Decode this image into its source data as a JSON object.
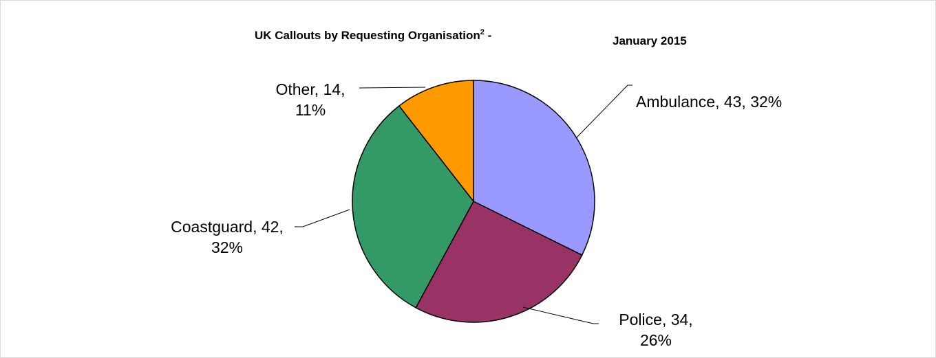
{
  "chart_data": {
    "type": "pie",
    "title": "UK Callouts by Requesting Organisation",
    "title_superscript": "2",
    "title_separator": " -",
    "subtitle": "January 2015",
    "categories": [
      "Ambulance",
      "Police",
      "Coastguard",
      "Other"
    ],
    "values": [
      43,
      34,
      42,
      14
    ],
    "percentages": [
      "32%",
      "26%",
      "32%",
      "11%"
    ],
    "colors": [
      "#9999FF",
      "#993366",
      "#339966",
      "#FF9900"
    ],
    "data_labels": [
      [
        "Ambulance, 43, 32%"
      ],
      [
        "Police, 34,",
        "26%"
      ],
      [
        "Coastguard, 42,",
        "32%"
      ],
      [
        "Other, 14,",
        "11%"
      ]
    ],
    "legend": "none"
  }
}
